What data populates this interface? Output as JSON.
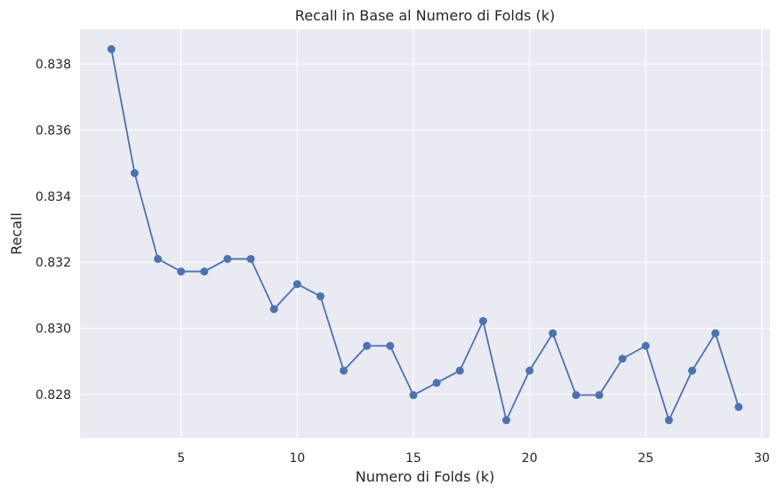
{
  "chart_data": {
    "type": "line",
    "title": "Recall in Base al Numero di Folds (k)",
    "xlabel": "Numero di Folds (k)",
    "ylabel": "Recall",
    "xlim": [
      0.65,
      30.35
    ],
    "ylim": [
      0.82668,
      0.83905
    ],
    "xticks": [
      5,
      10,
      15,
      20,
      25,
      30
    ],
    "yticks": [
      0.828,
      0.83,
      0.832,
      0.834,
      0.836,
      0.838
    ],
    "ytick_labels": [
      "0.828",
      "0.830",
      "0.832",
      "0.834",
      "0.836",
      "0.838"
    ],
    "grid": true,
    "series": [
      {
        "color": "#4c72b0",
        "marker": "circle",
        "x": [
          2,
          3,
          4,
          5,
          6,
          7,
          8,
          9,
          10,
          11,
          12,
          13,
          14,
          15,
          16,
          17,
          18,
          19,
          20,
          21,
          22,
          23,
          24,
          25,
          26,
          27,
          28,
          29
        ],
        "y": [
          0.83845,
          0.8347,
          0.8321,
          0.83172,
          0.83172,
          0.8321,
          0.8321,
          0.83058,
          0.83134,
          0.83097,
          0.82872,
          0.82947,
          0.82947,
          0.82798,
          0.82835,
          0.82872,
          0.83022,
          0.82722,
          0.82872,
          0.82985,
          0.82798,
          0.82798,
          0.82908,
          0.82947,
          0.82722,
          0.82872,
          0.82985,
          0.82762
        ]
      }
    ]
  },
  "style": {
    "plot_background": "#eaeaf2",
    "grid_color": "#ffffff",
    "text_color": "#262626"
  }
}
